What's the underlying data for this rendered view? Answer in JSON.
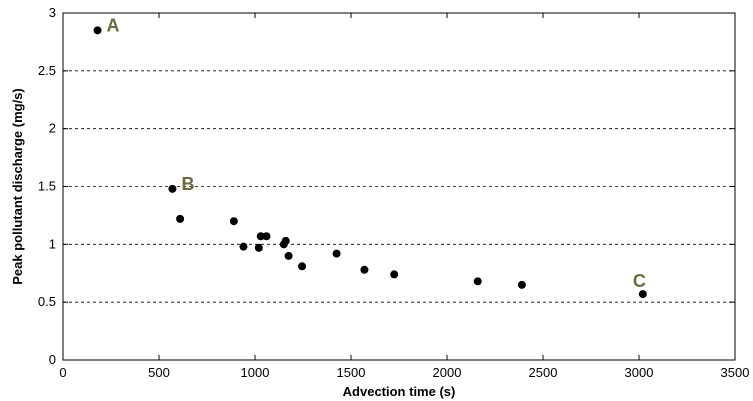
{
  "chart_data": {
    "type": "scatter",
    "title": "",
    "xlabel": "Advection time (s)",
    "ylabel": "Peak pollutant discharge (mg/s)",
    "xlim": [
      0,
      3500
    ],
    "ylim": [
      0,
      3
    ],
    "xticks": [
      0,
      500,
      1000,
      1500,
      2000,
      2500,
      3000,
      3500
    ],
    "yticks": [
      0,
      0.5,
      1,
      1.5,
      2,
      2.5,
      3
    ],
    "xtick_labels": [
      "0",
      "500",
      "1000",
      "1500",
      "2000",
      "2500",
      "3000",
      "3500"
    ],
    "ytick_labels": [
      "0",
      "0.5",
      "1",
      "1.5",
      "2",
      "2.5",
      "3"
    ],
    "grid": "horizontal dashed",
    "marker_color": "#000000",
    "annotation_color": "#6b6b3f",
    "points": [
      {
        "x": 180,
        "y": 2.85
      },
      {
        "x": 570,
        "y": 1.48
      },
      {
        "x": 610,
        "y": 1.22
      },
      {
        "x": 890,
        "y": 1.2
      },
      {
        "x": 940,
        "y": 0.98
      },
      {
        "x": 1020,
        "y": 0.97
      },
      {
        "x": 1030,
        "y": 1.07
      },
      {
        "x": 1060,
        "y": 1.07
      },
      {
        "x": 1150,
        "y": 1.0
      },
      {
        "x": 1160,
        "y": 1.03
      },
      {
        "x": 1175,
        "y": 0.9
      },
      {
        "x": 1245,
        "y": 0.81
      },
      {
        "x": 1425,
        "y": 0.92
      },
      {
        "x": 1570,
        "y": 0.78
      },
      {
        "x": 1725,
        "y": 0.74
      },
      {
        "x": 2160,
        "y": 0.68
      },
      {
        "x": 2390,
        "y": 0.65
      },
      {
        "x": 3020,
        "y": 0.57
      }
    ],
    "annotations": [
      {
        "label": "A",
        "x": 180,
        "y": 2.85
      },
      {
        "label": "B",
        "x": 570,
        "y": 1.48
      },
      {
        "label": "C",
        "x": 3020,
        "y": 0.57
      }
    ]
  }
}
